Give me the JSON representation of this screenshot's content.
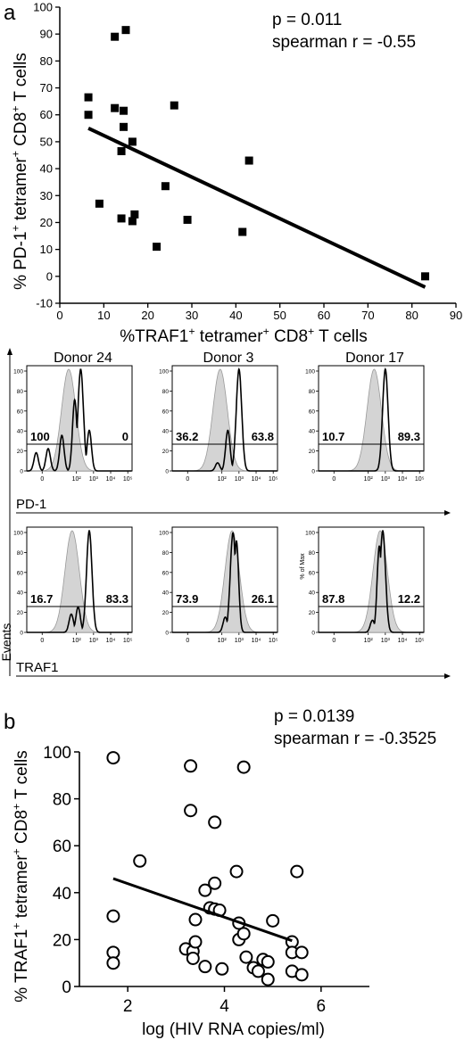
{
  "panels": {
    "a_label": "a",
    "b_label": "b"
  },
  "colors": {
    "line": "#000000",
    "hist_fill": "#d4d4d4",
    "hist_edge": "#9a9a9a"
  },
  "chart_data": [
    {
      "id": "panel-a-scatter",
      "type": "scatter",
      "marker": "filled-square",
      "xlabel": "%TRAF1⁺ tetramer⁺ CD8⁺ T cells",
      "ylabel": "% PD-1⁺ tetramer⁺ CD8⁺ T cells",
      "xlim": [
        0,
        90
      ],
      "ylim": [
        -10,
        100
      ],
      "xticks": [
        "0",
        "10",
        "20",
        "30",
        "40",
        "50",
        "60",
        "70",
        "80",
        "90"
      ],
      "yticks": [
        "-10",
        "0",
        "10",
        "20",
        "30",
        "40",
        "50",
        "60",
        "70",
        "80",
        "90",
        "100"
      ],
      "annotations": [
        "p = 0.011",
        "spearman r = -0.55"
      ],
      "points": [
        [
          6.5,
          66.5
        ],
        [
          6.5,
          60
        ],
        [
          9,
          27
        ],
        [
          12.5,
          89
        ],
        [
          12.5,
          62.5
        ],
        [
          14,
          46.5
        ],
        [
          14,
          21.5
        ],
        [
          14.5,
          55.5
        ],
        [
          14.5,
          61.5
        ],
        [
          15,
          91.5
        ],
        [
          16.5,
          50
        ],
        [
          16.5,
          20.5
        ],
        [
          17,
          23
        ],
        [
          22,
          11
        ],
        [
          24,
          33.5
        ],
        [
          26,
          63.5
        ],
        [
          29,
          21
        ],
        [
          41.5,
          16.5
        ],
        [
          43,
          43
        ],
        [
          83,
          0
        ]
      ],
      "fit": [
        [
          6.5,
          55
        ],
        [
          83,
          -4
        ]
      ]
    },
    {
      "id": "panel-b-scatter",
      "type": "scatter",
      "marker": "open-circle",
      "xlabel": "log (HIV RNA copies/ml)",
      "ylabel": "% TRAF1⁺ tetramer⁺ CD8⁺ T cells",
      "xlim": [
        1,
        7
      ],
      "ylim": [
        0,
        100
      ],
      "xticks": [
        "2",
        "4",
        "6"
      ],
      "yticks": [
        "0",
        "20",
        "40",
        "60",
        "80",
        "100"
      ],
      "annotations": [
        "p = 0.0139",
        "spearman r = -0.3525"
      ],
      "points": [
        [
          1.7,
          97.5
        ],
        [
          1.7,
          30
        ],
        [
          1.7,
          14.5
        ],
        [
          1.7,
          10
        ],
        [
          2.25,
          53.5
        ],
        [
          3.3,
          94
        ],
        [
          3.3,
          75
        ],
        [
          3.2,
          16
        ],
        [
          3.35,
          15
        ],
        [
          3.35,
          12
        ],
        [
          3.4,
          19
        ],
        [
          3.4,
          28.5
        ],
        [
          3.6,
          8.5
        ],
        [
          3.6,
          41
        ],
        [
          3.7,
          33.5
        ],
        [
          3.8,
          44
        ],
        [
          3.8,
          33
        ],
        [
          3.8,
          70
        ],
        [
          3.9,
          32.5
        ],
        [
          3.95,
          7.5
        ],
        [
          4.25,
          49
        ],
        [
          4.3,
          27
        ],
        [
          4.3,
          20
        ],
        [
          4.4,
          22.5
        ],
        [
          4.4,
          93.5
        ],
        [
          4.45,
          12.5
        ],
        [
          4.6,
          8
        ],
        [
          4.7,
          6.5
        ],
        [
          4.8,
          11.5
        ],
        [
          4.9,
          10.5
        ],
        [
          4.9,
          3
        ],
        [
          5.0,
          28
        ],
        [
          5.4,
          19
        ],
        [
          5.4,
          14.5
        ],
        [
          5.4,
          6.5
        ],
        [
          5.5,
          49
        ],
        [
          5.6,
          14.5
        ],
        [
          5.6,
          5
        ]
      ],
      "fit": [
        [
          1.7,
          46
        ],
        [
          5.4,
          19.5
        ]
      ]
    },
    {
      "id": "histogram-grid",
      "type": "area",
      "donors": [
        "Donor 24",
        "Donor 3",
        "Donor 17"
      ],
      "rows": [
        {
          "marker": "PD-1",
          "gate_values": [
            [
              "100",
              "0"
            ],
            [
              "36.2",
              "63.8"
            ],
            [
              "10.7",
              "89.3"
            ]
          ],
          "shaded_peak_log": [
            1.55,
            1.9,
            2.35
          ],
          "black_peaks": [
            [
              [
                -0.35,
                0.18
              ],
              [
                0.35,
                0.22
              ],
              [
                1.15,
                0.35
              ],
              [
                1.9,
                0.7
              ],
              [
                2.25,
                1.0
              ],
              [
                2.75,
                0.4
              ]
            ],
            [
              [
                1.75,
                0.08
              ],
              [
                2.35,
                0.4
              ],
              [
                3.0,
                1.0
              ]
            ],
            [
              [
                3.0,
                1.0
              ]
            ]
          ]
        },
        {
          "marker": "TRAF1",
          "gate_values": [
            [
              "16.7",
              "83.3"
            ],
            [
              "73.9",
              "26.1"
            ],
            [
              "87.8",
              "12.2"
            ]
          ],
          "shaded_peak_log": [
            1.75,
            2.6,
            2.7
          ],
          "black_peaks": [
            [
              [
                1.7,
                0.18
              ],
              [
                2.1,
                0.25
              ],
              [
                2.75,
                1.0
              ]
            ],
            [
              [
                2.2,
                0.15
              ],
              [
                2.65,
                0.98
              ],
              [
                2.85,
                0.9
              ]
            ],
            [
              [
                2.25,
                0.12
              ],
              [
                2.65,
                0.85
              ],
              [
                2.85,
                1.0
              ]
            ]
          ]
        }
      ],
      "yticks": [
        "0",
        "20",
        "40",
        "60",
        "80",
        "100"
      ],
      "xticks_log": [
        [
          "0",
          "0"
        ],
        [
          "2",
          "10²"
        ],
        [
          "3",
          "10³"
        ],
        [
          "4",
          "10⁴"
        ],
        [
          "5",
          "10⁵"
        ]
      ],
      "ylabel": "Events",
      "extra_ylabel": "% of Max"
    }
  ]
}
